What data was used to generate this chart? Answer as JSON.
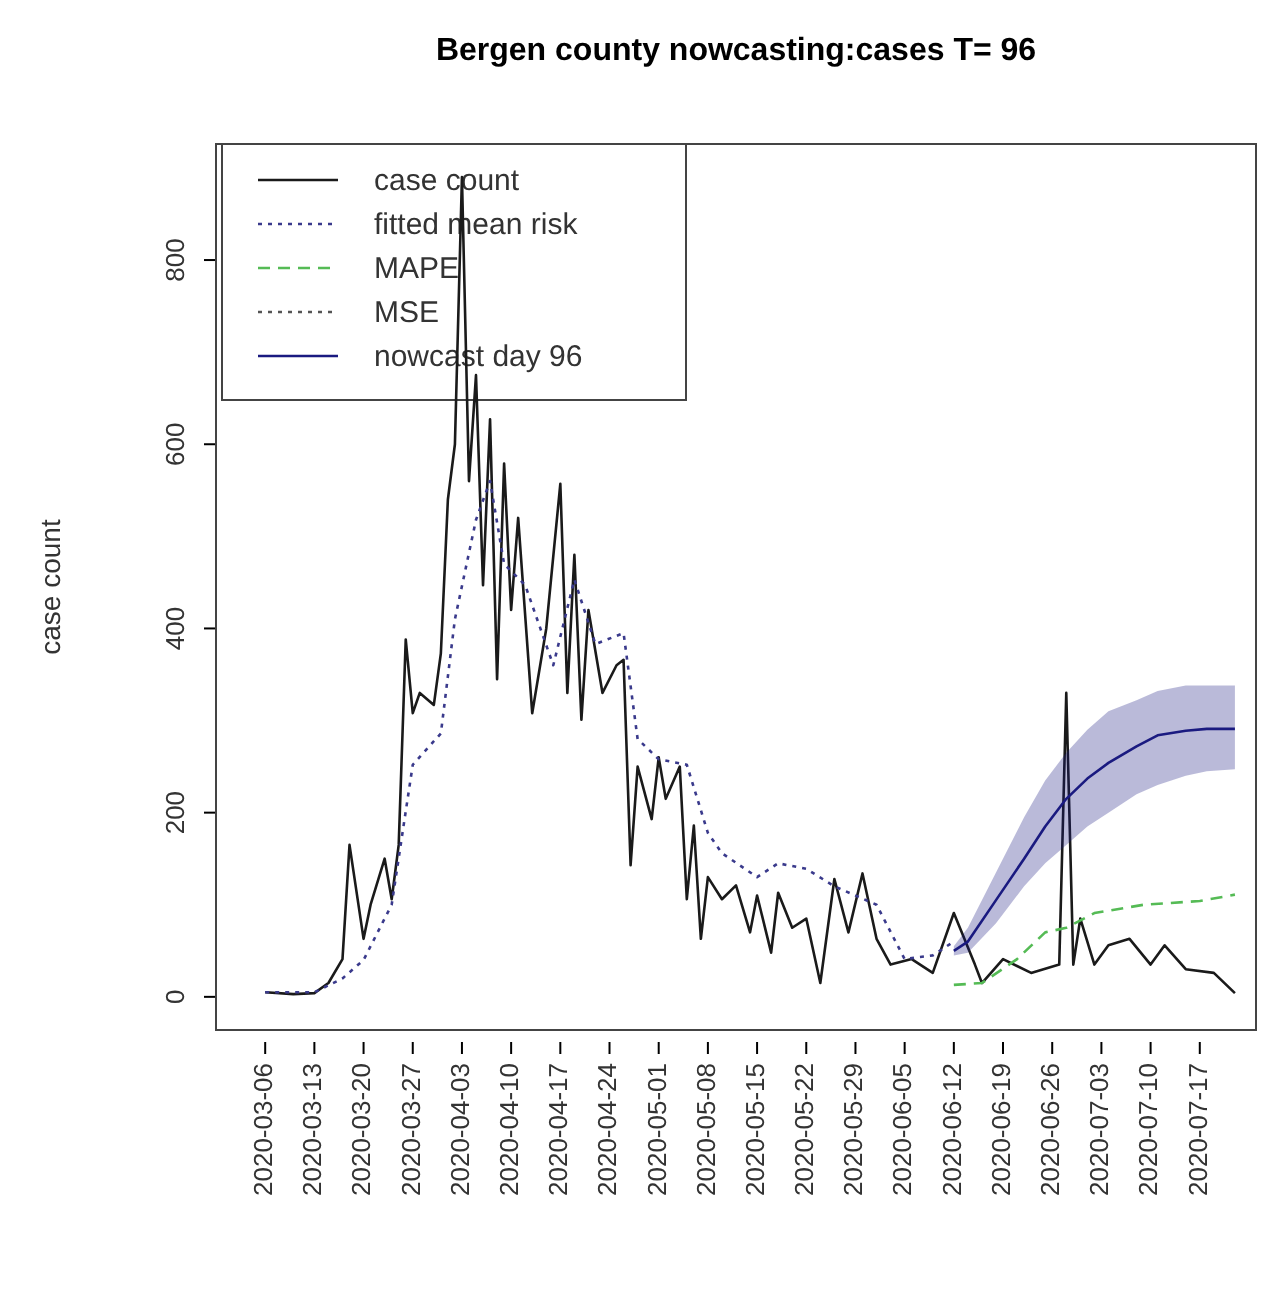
{
  "chart_data": {
    "type": "line",
    "title": "Bergen county nowcasting:cases T= 96",
    "ylabel": "case count",
    "xlim": [
      "2020-02-28",
      "2020-07-25"
    ],
    "ylim": [
      -36,
      926
    ],
    "xticks": [
      "2020-03-06",
      "2020-03-13",
      "2020-03-20",
      "2020-03-27",
      "2020-04-03",
      "2020-04-10",
      "2020-04-17",
      "2020-04-24",
      "2020-05-01",
      "2020-05-08",
      "2020-05-15",
      "2020-05-22",
      "2020-05-29",
      "2020-06-05",
      "2020-06-12",
      "2020-06-19",
      "2020-06-26",
      "2020-07-03",
      "2020-07-10",
      "2020-07-17"
    ],
    "yticks": [
      0,
      200,
      400,
      600,
      800
    ],
    "grid": false,
    "legend": "top left",
    "series": [
      {
        "name": "case count",
        "color": "#1a1a1a",
        "line_style": "solid",
        "x": [
          "2020-03-06",
          "2020-03-10",
          "2020-03-13",
          "2020-03-15",
          "2020-03-17",
          "2020-03-18",
          "2020-03-20",
          "2020-03-21",
          "2020-03-23",
          "2020-03-24",
          "2020-03-25",
          "2020-03-26",
          "2020-03-27",
          "2020-03-28",
          "2020-03-30",
          "2020-03-31",
          "2020-04-01",
          "2020-04-02",
          "2020-04-03",
          "2020-04-04",
          "2020-04-05",
          "2020-04-06",
          "2020-04-07",
          "2020-04-08",
          "2020-04-09",
          "2020-04-10",
          "2020-04-11",
          "2020-04-13",
          "2020-04-15",
          "2020-04-17",
          "2020-04-18",
          "2020-04-19",
          "2020-04-20",
          "2020-04-21",
          "2020-04-23",
          "2020-04-25",
          "2020-04-26",
          "2020-04-27",
          "2020-04-28",
          "2020-04-30",
          "2020-05-01",
          "2020-05-02",
          "2020-05-04",
          "2020-05-05",
          "2020-05-06",
          "2020-05-07",
          "2020-05-08",
          "2020-05-10",
          "2020-05-12",
          "2020-05-14",
          "2020-05-15",
          "2020-05-17",
          "2020-05-18",
          "2020-05-20",
          "2020-05-22",
          "2020-05-24",
          "2020-05-26",
          "2020-05-28",
          "2020-05-30",
          "2020-06-01",
          "2020-06-03",
          "2020-06-06",
          "2020-06-09",
          "2020-06-12",
          "2020-06-15",
          "2020-06-16",
          "2020-06-19",
          "2020-06-23",
          "2020-06-27",
          "2020-06-28",
          "2020-06-29",
          "2020-06-30",
          "2020-07-02",
          "2020-07-04",
          "2020-07-07",
          "2020-07-10",
          "2020-07-12",
          "2020-07-15",
          "2020-07-19",
          "2020-07-22"
        ],
        "values": [
          5,
          3,
          4,
          15,
          41,
          165,
          63,
          100,
          150,
          106,
          165,
          388,
          308,
          330,
          317,
          373,
          540,
          600,
          890,
          560,
          675,
          447,
          627,
          345,
          579,
          420,
          520,
          308,
          400,
          557,
          330,
          480,
          301,
          420,
          330,
          360,
          366,
          143,
          250,
          193,
          260,
          215,
          250,
          106,
          186,
          63,
          130,
          106,
          121,
          70,
          110,
          48,
          113,
          75,
          85,
          15,
          128,
          70,
          134,
          63,
          35,
          41,
          26,
          91,
          35,
          15,
          41,
          26,
          35,
          330,
          35,
          85,
          35,
          56,
          63,
          35,
          56,
          30,
          26,
          4
        ]
      },
      {
        "name": "fitted mean risk",
        "color": "#3a3a8c",
        "line_style": "dotted",
        "x": [
          "2020-03-06",
          "2020-03-13",
          "2020-03-17",
          "2020-03-20",
          "2020-03-24",
          "2020-03-27",
          "2020-03-31",
          "2020-04-02",
          "2020-04-05",
          "2020-04-07",
          "2020-04-09",
          "2020-04-12",
          "2020-04-16",
          "2020-04-19",
          "2020-04-22",
          "2020-04-26",
          "2020-04-28",
          "2020-05-01",
          "2020-05-05",
          "2020-05-08",
          "2020-05-10",
          "2020-05-15",
          "2020-05-18",
          "2020-05-22",
          "2020-05-26",
          "2020-06-01",
          "2020-06-05",
          "2020-06-09",
          "2020-06-12"
        ],
        "values": [
          5,
          5,
          20,
          40,
          100,
          252,
          286,
          410,
          518,
          560,
          470,
          447,
          360,
          453,
          383,
          395,
          280,
          258,
          252,
          178,
          156,
          130,
          145,
          139,
          120,
          100,
          41,
          45,
          60
        ]
      },
      {
        "name": "MAPE",
        "color": "#55bb55",
        "line_style": "dashed",
        "x": [
          "2020-06-12",
          "2020-06-16",
          "2020-06-21",
          "2020-06-25",
          "2020-06-28",
          "2020-07-02",
          "2020-07-09",
          "2020-07-17",
          "2020-07-22"
        ],
        "values": [
          13,
          15,
          41,
          70,
          75,
          91,
          100,
          104,
          111
        ]
      },
      {
        "name": "MSE",
        "color": "#555555",
        "line_style": "dotted"
      },
      {
        "name": "nowcast day 96",
        "color": "#1a1a80",
        "line_style": "solid",
        "x": [
          "2020-06-12",
          "2020-06-14",
          "2020-06-18",
          "2020-06-22",
          "2020-06-25",
          "2020-06-28",
          "2020-07-01",
          "2020-07-04",
          "2020-07-08",
          "2020-07-11",
          "2020-07-15",
          "2020-07-18",
          "2020-07-22"
        ],
        "values": [
          50,
          60,
          105,
          150,
          185,
          215,
          237,
          254,
          272,
          284,
          289,
          291,
          291
        ],
        "lower": [
          45,
          48,
          80,
          120,
          145,
          165,
          185,
          200,
          220,
          230,
          240,
          245,
          247
        ],
        "upper": [
          55,
          75,
          135,
          195,
          235,
          265,
          290,
          310,
          322,
          332,
          338,
          338,
          338
        ]
      }
    ]
  }
}
